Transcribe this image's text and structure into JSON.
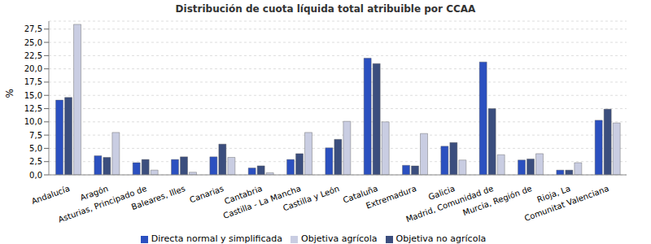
{
  "chart_data": {
    "type": "bar",
    "title": "Distribución de cuota líquida total atribuible por CCAA",
    "y_label": "%",
    "categories": [
      "Andalucía",
      "Aragón",
      "Asturias, Principado de",
      "Baleares, Illes",
      "Canarias",
      "Cantabria",
      "Castilla - La Mancha",
      "Castilla y León",
      "Cataluña",
      "Extremadura",
      "Galicia",
      "Madrid, Comunidad de",
      "Murcia, Región de",
      "Rioja, La",
      "Comunitat Valenciana"
    ],
    "series": [
      {
        "name": "Directa normal y simplificada",
        "color": "#2b50c0",
        "values": [
          14.1,
          3.6,
          2.3,
          2.9,
          3.4,
          1.3,
          2.9,
          5.1,
          22.0,
          1.8,
          5.4,
          21.3,
          2.8,
          0.9,
          10.3
        ]
      },
      {
        "name": "Objetiva no agrícola",
        "color": "#3b4e7e",
        "values": [
          14.6,
          3.3,
          2.9,
          3.4,
          5.8,
          1.7,
          4.0,
          6.7,
          21.0,
          1.7,
          6.1,
          12.5,
          3.0,
          0.9,
          12.4
        ]
      },
      {
        "name": "Objetiva agrícola",
        "color": "#c9cde2",
        "values": [
          28.4,
          8.0,
          0.9,
          0.5,
          3.3,
          0.4,
          8.0,
          10.1,
          10.0,
          7.8,
          2.8,
          3.8,
          4.0,
          2.3,
          9.8
        ]
      }
    ],
    "ylim": [
      0,
      29
    ],
    "yticks": [
      {
        "value": 0,
        "label": "0,0"
      },
      {
        "value": 2.5,
        "label": "2,5"
      },
      {
        "value": 5,
        "label": "5,0"
      },
      {
        "value": 7.5,
        "label": "7,5"
      },
      {
        "value": 10,
        "label": "10,0"
      },
      {
        "value": 12.5,
        "label": "12,5"
      },
      {
        "value": 15,
        "label": "15,0"
      },
      {
        "value": 17.5,
        "label": "17,5"
      },
      {
        "value": 20,
        "label": "20,0"
      },
      {
        "value": 22.5,
        "label": "22,5"
      },
      {
        "value": 25,
        "label": "25,0"
      },
      {
        "value": 27.5,
        "label": "27,5"
      }
    ],
    "grid": true,
    "legend": "bottom"
  }
}
